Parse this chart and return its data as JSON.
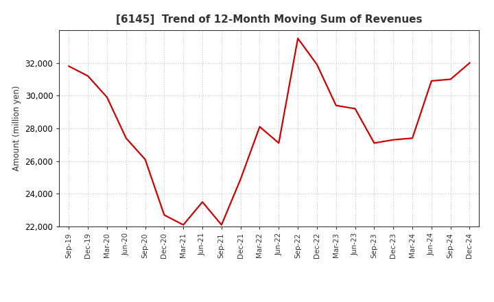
{
  "title": "[6145]  Trend of 12-Month Moving Sum of Revenues",
  "ylabel": "Amount (million yen)",
  "line_color": "#cc0000",
  "line_width": 1.6,
  "background_color": "#ffffff",
  "grid_color": "#999999",
  "ylim": [
    22000,
    34000
  ],
  "yticks": [
    22000,
    24000,
    26000,
    28000,
    30000,
    32000
  ],
  "labels": [
    "Sep-19",
    "Dec-19",
    "Mar-20",
    "Jun-20",
    "Sep-20",
    "Dec-20",
    "Mar-21",
    "Jun-21",
    "Sep-21",
    "Dec-21",
    "Mar-22",
    "Jun-22",
    "Sep-22",
    "Dec-22",
    "Mar-23",
    "Jun-23",
    "Sep-23",
    "Dec-23",
    "Mar-24",
    "Jun-24",
    "Sep-24",
    "Dec-24"
  ],
  "values": [
    31800,
    31200,
    29900,
    27400,
    26100,
    22700,
    22100,
    23500,
    22100,
    24900,
    28100,
    27100,
    33500,
    31900,
    29400,
    29200,
    27100,
    27300,
    27400,
    30900,
    31000,
    32000
  ]
}
